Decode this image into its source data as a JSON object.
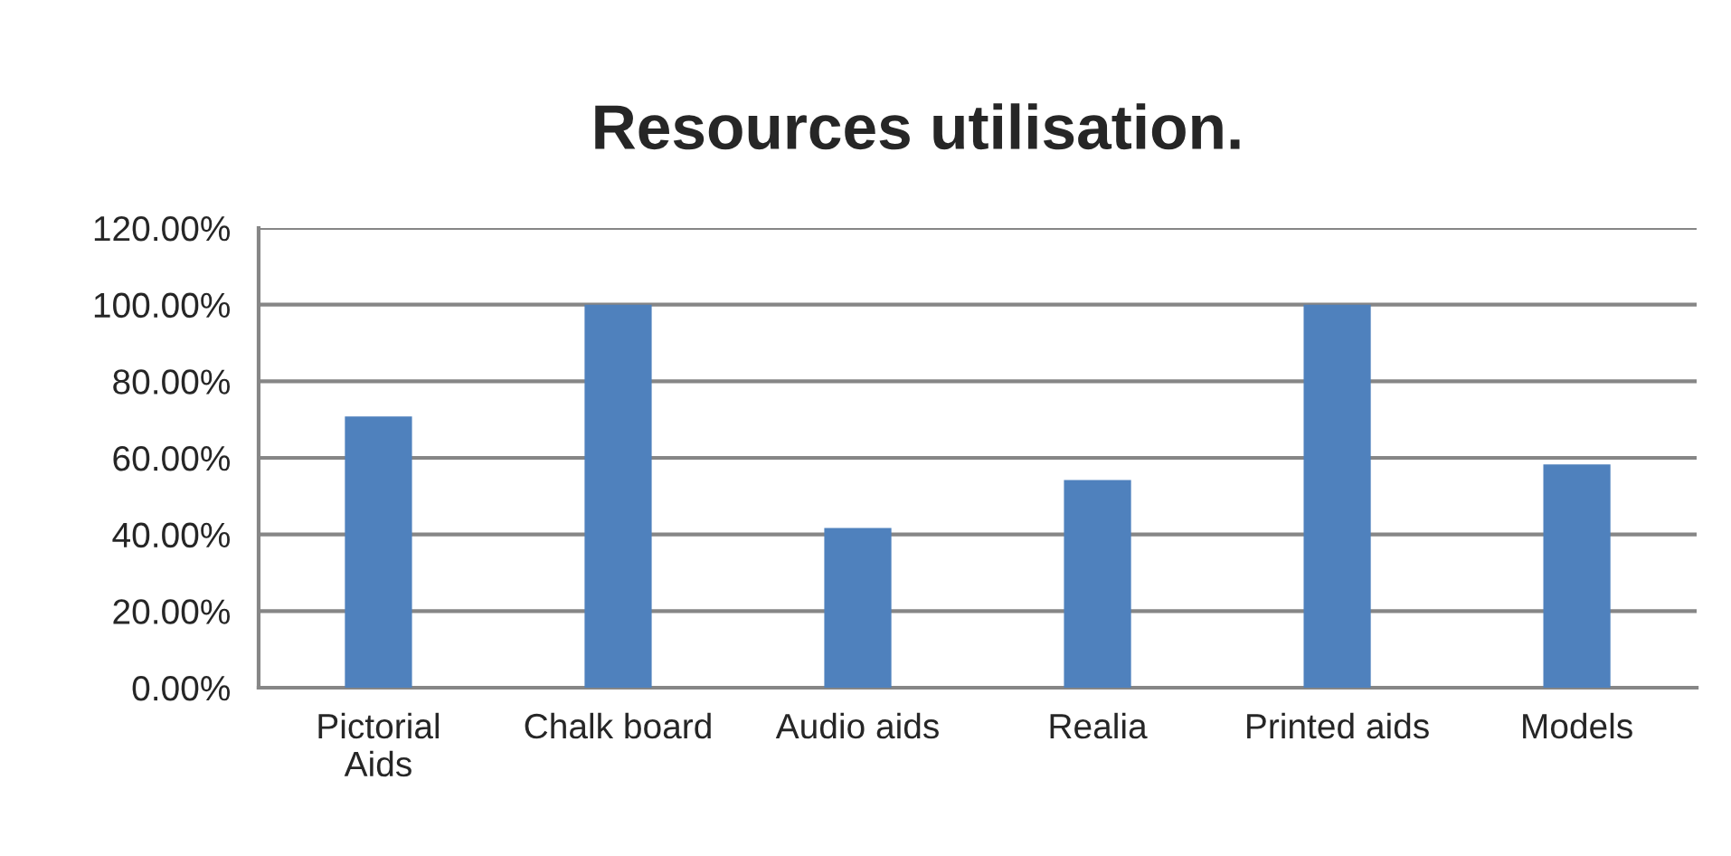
{
  "chart_data": {
    "type": "bar",
    "title": "Resources utilisation.",
    "categories": [
      "Pictorial\nAids",
      "Chalk board",
      "Audio aids",
      "Realia",
      "Printed aids",
      "Models"
    ],
    "values": [
      70.8,
      100,
      41.7,
      54.2,
      100,
      58.3
    ],
    "color": "#4f81bd",
    "ylim": [
      0,
      120
    ],
    "yticks": [
      {
        "value": 0,
        "label": "0.00%"
      },
      {
        "value": 20,
        "label": "20.00%"
      },
      {
        "value": 40,
        "label": "40.00%"
      },
      {
        "value": 60,
        "label": "60.00%"
      },
      {
        "value": 80,
        "label": "80.00%"
      },
      {
        "value": 100,
        "label": "100.00%"
      },
      {
        "value": 120,
        "label": "120.00%"
      }
    ],
    "grid": "y"
  }
}
